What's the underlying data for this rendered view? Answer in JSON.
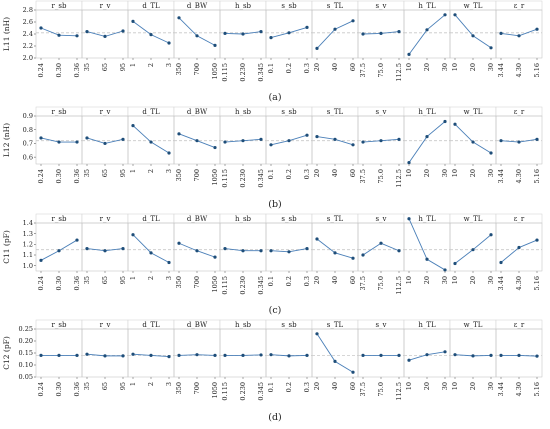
{
  "factors": [
    {
      "name": "r_sb",
      "levels": [
        "0.24",
        "0.30",
        "0.36"
      ]
    },
    {
      "name": "r_v",
      "levels": [
        "35",
        "65",
        "95"
      ]
    },
    {
      "name": "d_TL",
      "levels": [
        "1",
        "2",
        "3"
      ]
    },
    {
      "name": "d_BW",
      "levels": [
        "350",
        "700",
        "1050"
      ]
    },
    {
      "name": "h_sb",
      "levels": [
        "0.115",
        "0.230",
        "0.345"
      ]
    },
    {
      "name": "s_sb",
      "levels": [
        "0.1",
        "0.2",
        "0.3"
      ]
    },
    {
      "name": "s_TL",
      "levels": [
        "20",
        "40",
        "60"
      ]
    },
    {
      "name": "s_v",
      "levels": [
        "37.5",
        "75.0",
        "112.5"
      ]
    },
    {
      "name": "h_TL",
      "levels": [
        "10",
        "20",
        "30"
      ]
    },
    {
      "name": "w_TL",
      "levels": [
        "10",
        "20",
        "30"
      ]
    },
    {
      "name": "ε_r",
      "levels": [
        "3.44",
        "4.30",
        "5.16"
      ]
    }
  ],
  "colors": {
    "line": "#4a7fb8",
    "marker": "#1f4e79",
    "mean_line": "#c8c8c8",
    "axis": "#555555"
  },
  "chart_data": [
    {
      "type": "line",
      "panel": "(a)",
      "ylabel": "L11 (nH)",
      "ylim": [
        2.0,
        2.8
      ],
      "yticks": [
        2.0,
        2.2,
        2.4,
        2.6,
        2.8
      ],
      "yticklabels": [
        "2.0",
        "2.2",
        "2.4",
        "2.6",
        "2.8"
      ],
      "mean": 2.42,
      "series": [
        [
          2.5,
          2.38,
          2.37
        ],
        [
          2.44,
          2.36,
          2.45
        ],
        [
          2.61,
          2.39,
          2.25
        ],
        [
          2.67,
          2.37,
          2.21
        ],
        [
          2.41,
          2.4,
          2.44
        ],
        [
          2.34,
          2.42,
          2.51
        ],
        [
          2.16,
          2.48,
          2.62
        ],
        [
          2.4,
          2.41,
          2.44
        ],
        [
          2.06,
          2.47,
          2.72
        ],
        [
          2.72,
          2.37,
          2.17
        ],
        [
          2.41,
          2.37,
          2.48
        ]
      ]
    },
    {
      "type": "line",
      "panel": "(b)",
      "ylabel": "L12 (nH)",
      "ylim": [
        0.55,
        0.9
      ],
      "yticks": [
        0.6,
        0.7,
        0.8,
        0.9
      ],
      "yticklabels": [
        "0.6",
        "0.7",
        "0.8",
        "0.9"
      ],
      "mean": 0.72,
      "series": [
        [
          0.74,
          0.71,
          0.71
        ],
        [
          0.74,
          0.7,
          0.73
        ],
        [
          0.83,
          0.71,
          0.63
        ],
        [
          0.77,
          0.72,
          0.67
        ],
        [
          0.71,
          0.72,
          0.73
        ],
        [
          0.69,
          0.72,
          0.76
        ],
        [
          0.75,
          0.73,
          0.69
        ],
        [
          0.71,
          0.72,
          0.73
        ],
        [
          0.56,
          0.75,
          0.86
        ],
        [
          0.84,
          0.71,
          0.63
        ],
        [
          0.72,
          0.71,
          0.73
        ]
      ]
    },
    {
      "type": "line",
      "panel": "(c)",
      "ylabel": "C11 (pF)",
      "ylim": [
        0.95,
        1.4
      ],
      "yticks": [
        1.0,
        1.1,
        1.2,
        1.3,
        1.4
      ],
      "yticklabels": [
        "1.0",
        "1.1",
        "1.2",
        "1.3",
        "1.4"
      ],
      "mean": 1.15,
      "series": [
        [
          1.05,
          1.14,
          1.24
        ],
        [
          1.16,
          1.14,
          1.16
        ],
        [
          1.29,
          1.12,
          1.03
        ],
        [
          1.21,
          1.14,
          1.08
        ],
        [
          1.16,
          1.14,
          1.14
        ],
        [
          1.14,
          1.13,
          1.16
        ],
        [
          1.25,
          1.12,
          1.07
        ],
        [
          1.1,
          1.21,
          1.14
        ],
        [
          1.44,
          1.06,
          0.96
        ],
        [
          1.02,
          1.15,
          1.29
        ],
        [
          1.03,
          1.17,
          1.24
        ]
      ]
    },
    {
      "type": "line",
      "panel": "(d)",
      "ylabel": "C12 (pF)",
      "ylim": [
        0.05,
        0.25
      ],
      "yticks": [
        0.05,
        0.1,
        0.15,
        0.2,
        0.25
      ],
      "yticklabels": [
        "0.05",
        "0.10",
        "0.15",
        "0.20",
        "0.25"
      ],
      "mean": 0.14,
      "series": [
        [
          0.14,
          0.14,
          0.14
        ],
        [
          0.145,
          0.138,
          0.138
        ],
        [
          0.145,
          0.14,
          0.135
        ],
        [
          0.14,
          0.143,
          0.14
        ],
        [
          0.14,
          0.14,
          0.142
        ],
        [
          0.143,
          0.138,
          0.14
        ],
        [
          0.23,
          0.115,
          0.07
        ],
        [
          0.14,
          0.14,
          0.14
        ],
        [
          0.12,
          0.143,
          0.155
        ],
        [
          0.143,
          0.138,
          0.14
        ],
        [
          0.14,
          0.14,
          0.137
        ]
      ]
    }
  ]
}
